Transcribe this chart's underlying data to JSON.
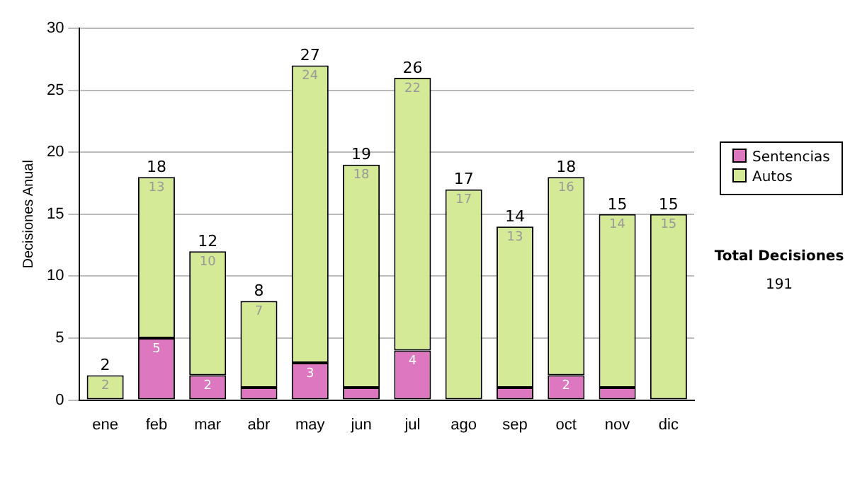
{
  "chart_data": {
    "type": "bar",
    "stacked": true,
    "ylabel": "Decisiones Anual",
    "categories": [
      "ene",
      "feb",
      "mar",
      "abr",
      "may",
      "jun",
      "jul",
      "ago",
      "sep",
      "oct",
      "nov",
      "dic"
    ],
    "series": [
      {
        "name": "Sentencias",
        "color": "#dd77c0",
        "values": [
          0,
          5,
          2,
          1,
          3,
          1,
          4,
          0,
          1,
          2,
          1,
          0
        ],
        "value_labels": [
          null,
          "5",
          "2",
          null,
          "3",
          null,
          "4",
          null,
          null,
          "2",
          null,
          null
        ]
      },
      {
        "name": "Autos",
        "color": "#d4ea96",
        "values": [
          2,
          13,
          10,
          7,
          24,
          18,
          22,
          17,
          13,
          16,
          14,
          15
        ],
        "value_labels": [
          "2",
          "13",
          "10",
          "7",
          "24",
          "18",
          "22",
          "17",
          "13",
          "16",
          "14",
          "15"
        ]
      }
    ],
    "totals": [
      "2",
      "18",
      "12",
      "8",
      "27",
      "19",
      "26",
      "17",
      "14",
      "18",
      "15",
      "15"
    ],
    "ylim": [
      0,
      30
    ],
    "yticks": [
      0,
      5,
      10,
      15,
      20,
      25,
      30
    ],
    "grid": "y",
    "legend": "right",
    "annotations": [
      "Total Decisiones",
      "191"
    ]
  }
}
